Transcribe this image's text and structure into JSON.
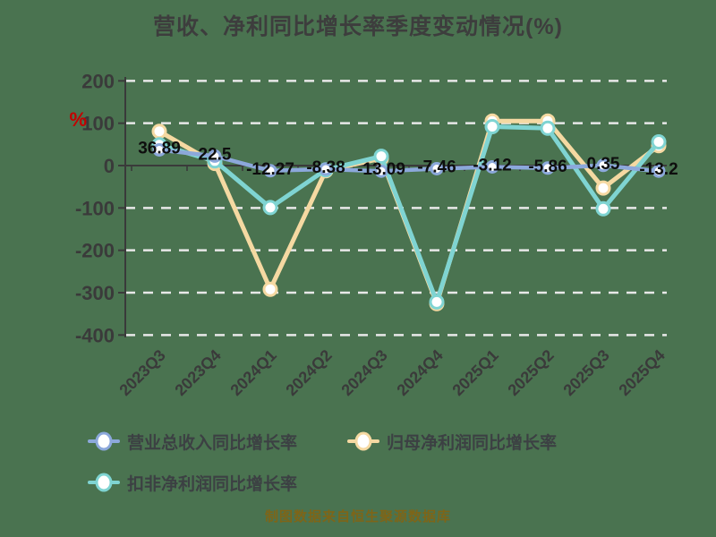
{
  "title": "营收、净利同比增长率季度变动情况(%)",
  "footer": "制图数据来自恒生聚源数据库",
  "y_axis": {
    "unit_label": "%",
    "unit_color": "#C40000",
    "ticks": [
      200,
      100,
      0,
      -100,
      -200,
      -300,
      -400
    ],
    "min": -400,
    "max": 200
  },
  "chart_data": {
    "type": "line",
    "title": "营收、净利同比增长率季度变动情况(%)",
    "categories": [
      "2023Q3",
      "2023Q4",
      "2024Q1",
      "2024Q2",
      "2024Q3",
      "2024Q4",
      "2025Q1",
      "2025Q2",
      "2025Q3",
      "2025Q4"
    ],
    "series": [
      {
        "name": "营业总收入同比增长率",
        "color": "#8CA8DB",
        "values": [
          36.89,
          22.5,
          -12.27,
          -8.38,
          -13.09,
          -7.46,
          -3.12,
          -5.86,
          0.35,
          -13.2
        ],
        "labeled": true
      },
      {
        "name": "归母净利润同比增长率",
        "color": "#F5D9A2",
        "values": [
          81,
          5,
          -292,
          -12,
          17,
          -326,
          105,
          105,
          -53,
          47
        ],
        "labeled": false
      },
      {
        "name": "扣非净利润同比增长率",
        "color": "#7FD4D2",
        "values": [
          49,
          11,
          -99,
          -10,
          22,
          -322,
          92,
          88,
          -102,
          56
        ],
        "labeled": false
      }
    ],
    "ylim": [
      -400,
      200
    ],
    "xlabel": "",
    "ylabel": "%",
    "grid": true,
    "legend_position": "bottom"
  },
  "colors": {
    "background": "#4A7350",
    "axis": "#3A3A3A",
    "gridline": "#E8E8E8",
    "data_label": "#0E0E0E",
    "tick_label": "#3A3A3A"
  }
}
